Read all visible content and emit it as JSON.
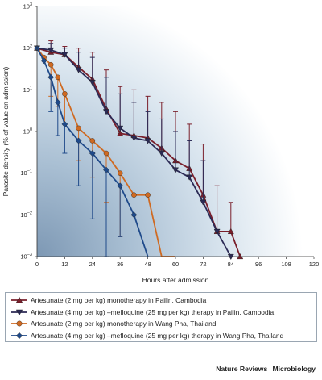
{
  "chart_data": {
    "type": "line",
    "xlabel": "Hours after admission",
    "ylabel": "Parasite density (% of value on admission)",
    "xlim": [
      0,
      120
    ],
    "x_ticks": [
      0,
      12,
      24,
      36,
      48,
      60,
      72,
      84,
      96,
      108,
      120
    ],
    "ylim_log10": [
      -3,
      3
    ],
    "y_scale": "log",
    "y_ticks": [
      {
        "exp": 3,
        "label": "10",
        "sup": "3"
      },
      {
        "exp": 2,
        "label": "10",
        "sup": "2"
      },
      {
        "exp": 1,
        "label": "10",
        "sup": "1"
      },
      {
        "exp": 0,
        "label": "10",
        "sup": "0"
      },
      {
        "exp": -1,
        "label": "10",
        "sup": "−1"
      },
      {
        "exp": -2,
        "label": "10",
        "sup": "−2"
      },
      {
        "exp": -3,
        "label": "10",
        "sup": "−3"
      }
    ],
    "grid": false,
    "legend_placement": "bottom",
    "series": [
      {
        "name": "Artesunate (2 mg per kg) monotherapy in Pailin, Cambodia",
        "color": "#7a1f2b",
        "marker": "triangle-up",
        "points": [
          [
            0,
            100
          ],
          [
            6,
            80
          ],
          [
            12,
            70
          ],
          [
            18,
            35
          ],
          [
            24,
            18
          ],
          [
            30,
            3.5
          ],
          [
            36,
            0.9
          ],
          [
            42,
            0.8
          ],
          [
            48,
            0.7
          ],
          [
            54,
            0.4
          ],
          [
            60,
            0.2
          ],
          [
            66,
            0.13
          ],
          [
            72,
            0.03
          ],
          [
            78,
            0.004
          ],
          [
            84,
            0.004
          ],
          [
            88,
            0.001
          ]
        ],
        "errors_up": [
          [
            6,
            150
          ],
          [
            12,
            110
          ],
          [
            18,
            100
          ],
          [
            24,
            80
          ],
          [
            30,
            30
          ],
          [
            36,
            12
          ],
          [
            42,
            10
          ],
          [
            48,
            7
          ],
          [
            54,
            5
          ],
          [
            60,
            3
          ],
          [
            66,
            1.5
          ],
          [
            72,
            0.5
          ],
          [
            78,
            0.05
          ],
          [
            84,
            0.02
          ]
        ]
      },
      {
        "name": "Artesunate (4 mg per kg) –mefloquine (25 mg per kg) therapy in Pailin, Cambodia",
        "color": "#2b2a55",
        "marker": "triangle-down",
        "points": [
          [
            0,
            100
          ],
          [
            6,
            90
          ],
          [
            12,
            70
          ],
          [
            18,
            30
          ],
          [
            24,
            15
          ],
          [
            30,
            3
          ],
          [
            36,
            1.2
          ],
          [
            42,
            0.7
          ],
          [
            48,
            0.6
          ],
          [
            54,
            0.3
          ],
          [
            60,
            0.12
          ],
          [
            66,
            0.08
          ],
          [
            72,
            0.02
          ],
          [
            78,
            0.004
          ],
          [
            84,
            0.001
          ]
        ],
        "errors_up": [
          [
            6,
            130
          ],
          [
            12,
            100
          ],
          [
            18,
            80
          ],
          [
            24,
            60
          ],
          [
            30,
            20
          ],
          [
            36,
            8
          ],
          [
            42,
            5
          ],
          [
            48,
            3
          ],
          [
            54,
            2
          ],
          [
            60,
            1
          ],
          [
            66,
            0.6
          ],
          [
            72,
            0.2
          ]
        ]
      },
      {
        "name": "Artesunate (2 mg per kg) monotherapy in Wang Pha, Thailand",
        "color": "#cf6a22",
        "marker": "circle",
        "points": [
          [
            0,
            100
          ],
          [
            3,
            60
          ],
          [
            6,
            40
          ],
          [
            9,
            20
          ],
          [
            12,
            8
          ],
          [
            18,
            1.2
          ],
          [
            24,
            0.6
          ],
          [
            30,
            0.3
          ],
          [
            36,
            0.1
          ],
          [
            42,
            0.03
          ],
          [
            48,
            0.03
          ],
          [
            54,
            0.0008
          ],
          [
            60,
            0.0008
          ]
        ],
        "errors_down": [
          [
            6,
            7
          ],
          [
            9,
            4
          ],
          [
            12,
            1.5
          ],
          [
            18,
            0.2
          ],
          [
            24,
            0.08
          ],
          [
            30,
            0.02
          ],
          [
            36,
            0.003
          ]
        ]
      },
      {
        "name": "Artesunate (4 mg per kg) –mefloquine (25 mg per kg) therapy in Wang Pha, Thailand",
        "color": "#1f4a8a",
        "marker": "diamond",
        "points": [
          [
            0,
            100
          ],
          [
            3,
            50
          ],
          [
            6,
            20
          ],
          [
            9,
            5
          ],
          [
            12,
            1.5
          ],
          [
            18,
            0.6
          ],
          [
            24,
            0.3
          ],
          [
            30,
            0.12
          ],
          [
            36,
            0.05
          ],
          [
            42,
            0.01
          ],
          [
            48,
            0.0008
          ]
        ],
        "errors_down": [
          [
            6,
            3
          ],
          [
            9,
            0.8
          ],
          [
            12,
            0.3
          ],
          [
            18,
            0.05
          ],
          [
            24,
            0.008
          ],
          [
            30,
            0.001
          ],
          [
            36,
            0.003
          ]
        ]
      }
    ]
  },
  "source": {
    "publisher": "Nature Reviews",
    "separator": "|",
    "journal": "Microbiology"
  }
}
